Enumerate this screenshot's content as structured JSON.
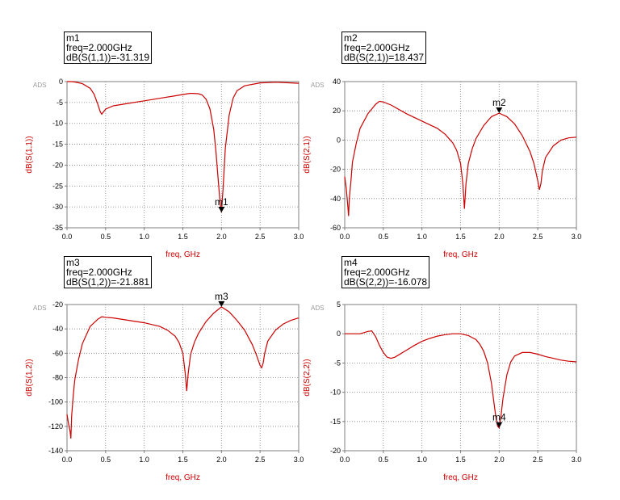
{
  "watermark": "ADS",
  "colors": {
    "trace": "#cc0000",
    "axis_label": "#cc0000",
    "frame": "#7f7f7f",
    "grid": "#7f7f7f",
    "text": "#000000"
  },
  "markers": [
    {
      "name": "m1",
      "freq": "freq=2.000GHz",
      "value": "dB(S(1,1))=-31.319"
    },
    {
      "name": "m2",
      "freq": "freq=2.000GHz",
      "value": "dB(S(2,1))=18.437"
    },
    {
      "name": "m3",
      "freq": "freq=2.000GHz",
      "value": "dB(S(1,2))=-21.881"
    },
    {
      "name": "m4",
      "freq": "freq=2.000GHz",
      "value": "dB(S(2,2))=-16.078"
    }
  ],
  "chart_data": [
    {
      "type": "line",
      "xlabel": "freq, GHz",
      "ylabel": "dB(S(1,1))",
      "xlim": [
        0,
        3
      ],
      "ylim": [
        -35,
        0
      ],
      "xticks": [
        "0.0",
        "0.5",
        "1.0",
        "1.5",
        "2.0",
        "2.5",
        "3.0"
      ],
      "yticks": [
        "0",
        "-5",
        "-10",
        "-15",
        "-20",
        "-25",
        "-30",
        "-35"
      ],
      "grid": true,
      "marker": {
        "label": "m1",
        "x": 2.0,
        "y": -31.319
      },
      "x": [
        0.0,
        0.05,
        0.1,
        0.2,
        0.3,
        0.35,
        0.4,
        0.43,
        0.45,
        0.5,
        0.6,
        0.8,
        1.0,
        1.2,
        1.4,
        1.5,
        1.6,
        1.7,
        1.75,
        1.8,
        1.85,
        1.9,
        1.93,
        1.96,
        1.98,
        2.0,
        2.02,
        2.05,
        2.1,
        2.15,
        2.2,
        2.3,
        2.5,
        2.7,
        2.9,
        3.0
      ],
      "y": [
        0.0,
        0.0,
        -0.1,
        -0.5,
        -1.6,
        -3.0,
        -5.5,
        -7.2,
        -7.8,
        -6.6,
        -5.8,
        -5.2,
        -4.6,
        -4.0,
        -3.4,
        -3.1,
        -2.8,
        -2.9,
        -3.2,
        -4.2,
        -6.5,
        -11.5,
        -17,
        -24,
        -28.5,
        -31.3,
        -26,
        -16,
        -8,
        -4,
        -2.2,
        -1.0,
        -0.3,
        -0.15,
        -0.3,
        -0.4
      ]
    },
    {
      "type": "line",
      "xlabel": "freq, GHz",
      "ylabel": "dB(S(2,1))",
      "xlim": [
        0,
        3
      ],
      "ylim": [
        -60,
        40
      ],
      "xticks": [
        "0.0",
        "0.5",
        "1.0",
        "1.5",
        "2.0",
        "2.5",
        "3.0"
      ],
      "yticks": [
        "40",
        "20",
        "0",
        "-20",
        "-40",
        "-60"
      ],
      "grid": true,
      "marker": {
        "label": "m2",
        "x": 2.0,
        "y": 18.437
      },
      "x": [
        0.0,
        0.02,
        0.04,
        0.05,
        0.06,
        0.08,
        0.1,
        0.15,
        0.2,
        0.3,
        0.4,
        0.45,
        0.5,
        0.6,
        0.8,
        1.0,
        1.2,
        1.3,
        1.4,
        1.45,
        1.5,
        1.53,
        1.55,
        1.57,
        1.6,
        1.65,
        1.7,
        1.8,
        1.9,
        2.0,
        2.1,
        2.2,
        2.3,
        2.4,
        2.45,
        2.5,
        2.52,
        2.54,
        2.56,
        2.6,
        2.7,
        2.8,
        2.9,
        3.0
      ],
      "y": [
        -25,
        -33,
        -45,
        -52,
        -40,
        -28,
        -15,
        -2,
        8,
        18,
        24.5,
        26.5,
        26,
        24,
        18,
        13,
        8,
        4,
        -2,
        -7,
        -16,
        -30,
        -47,
        -30,
        -16,
        -6,
        1,
        10,
        16,
        18.4,
        16,
        11,
        3,
        -8,
        -16,
        -28,
        -34,
        -30,
        -21,
        -12,
        -4,
        0,
        1.5,
        2
      ]
    },
    {
      "type": "line",
      "xlabel": "freq, GHz",
      "ylabel": "dB(S(1,2))",
      "xlim": [
        0,
        3
      ],
      "ylim": [
        -140,
        -20
      ],
      "xticks": [
        "0.0",
        "0.5",
        "1.0",
        "1.5",
        "2.0",
        "2.5",
        "3.0"
      ],
      "yticks": [
        "-20",
        "-40",
        "-60",
        "-80",
        "-100",
        "-120",
        "-140"
      ],
      "grid": true,
      "marker": {
        "label": "m3",
        "x": 2.0,
        "y": -21.881
      },
      "x": [
        0.0,
        0.02,
        0.04,
        0.05,
        0.06,
        0.08,
        0.1,
        0.15,
        0.2,
        0.3,
        0.4,
        0.45,
        0.5,
        0.6,
        0.8,
        1.0,
        1.2,
        1.3,
        1.4,
        1.45,
        1.5,
        1.53,
        1.55,
        1.57,
        1.6,
        1.65,
        1.7,
        1.8,
        1.9,
        2.0,
        2.1,
        2.2,
        2.3,
        2.4,
        2.45,
        2.5,
        2.52,
        2.54,
        2.56,
        2.6,
        2.7,
        2.8,
        2.9,
        3.0
      ],
      "y": [
        -110,
        -118,
        -124,
        -130,
        -112,
        -95,
        -82,
        -65,
        -52,
        -38,
        -32,
        -30,
        -30.5,
        -31,
        -33,
        -35,
        -38,
        -41,
        -46,
        -51,
        -60,
        -76,
        -91,
        -76,
        -61,
        -51,
        -44,
        -34,
        -27,
        -21.9,
        -26,
        -33,
        -41,
        -53,
        -61,
        -70,
        -72,
        -68,
        -60,
        -50,
        -41,
        -36,
        -33,
        -31
      ]
    },
    {
      "type": "line",
      "xlabel": "freq, GHz",
      "ylabel": "dB(S(2,2))",
      "xlim": [
        0,
        3
      ],
      "ylim": [
        -20,
        5
      ],
      "xticks": [
        "0.0",
        "0.5",
        "1.0",
        "1.5",
        "2.0",
        "2.5",
        "3.0"
      ],
      "yticks": [
        "5",
        "0",
        "-5",
        "-10",
        "-15",
        "-20"
      ],
      "grid": true,
      "marker": {
        "label": "m4",
        "x": 2.0,
        "y": -16.078
      },
      "x": [
        0.0,
        0.1,
        0.2,
        0.3,
        0.35,
        0.4,
        0.45,
        0.5,
        0.55,
        0.6,
        0.65,
        0.7,
        0.8,
        0.9,
        1.0,
        1.1,
        1.2,
        1.3,
        1.4,
        1.5,
        1.6,
        1.7,
        1.75,
        1.8,
        1.85,
        1.9,
        1.93,
        1.96,
        1.98,
        2.0,
        2.02,
        2.05,
        2.1,
        2.15,
        2.2,
        2.3,
        2.4,
        2.5,
        2.6,
        2.7,
        2.8,
        2.9,
        3.0
      ],
      "y": [
        0,
        0,
        0,
        0.4,
        0.5,
        -0.5,
        -2.0,
        -3.2,
        -4.0,
        -4.2,
        -4.0,
        -3.6,
        -2.8,
        -2.0,
        -1.3,
        -0.8,
        -0.4,
        -0.15,
        0,
        0,
        -0.3,
        -1.0,
        -1.8,
        -3.0,
        -5.0,
        -8.5,
        -11.5,
        -14.5,
        -15.8,
        -16.1,
        -14.5,
        -11.0,
        -7.0,
        -4.8,
        -3.8,
        -3.2,
        -3.2,
        -3.5,
        -3.9,
        -4.2,
        -4.5,
        -4.7,
        -4.8
      ]
    }
  ]
}
